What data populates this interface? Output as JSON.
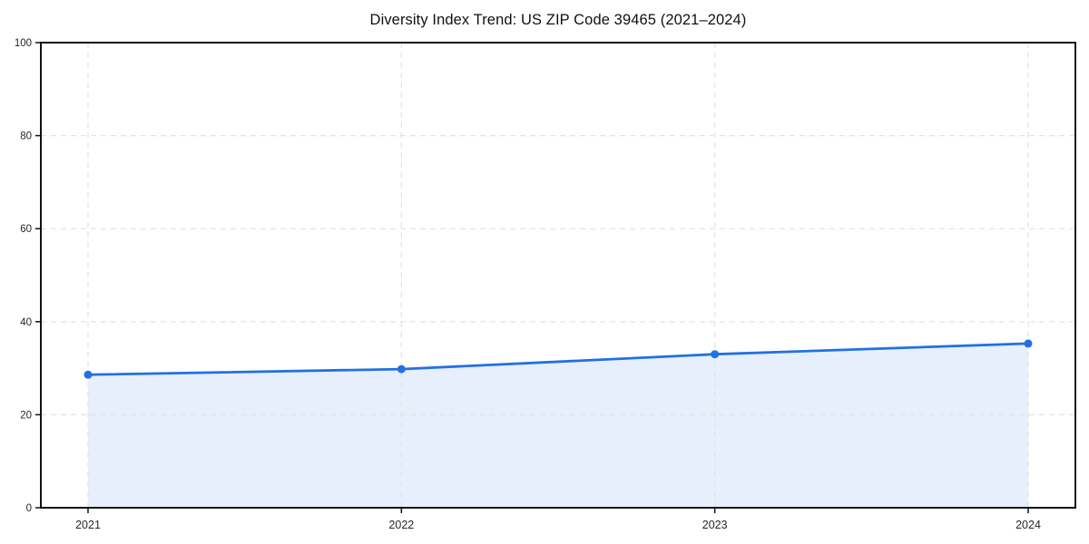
{
  "chart_data": {
    "type": "line",
    "title": "Diversity Index Trend: US ZIP Code 39465 (2021–2024)",
    "x": [
      "2021",
      "2022",
      "2023",
      "2024"
    ],
    "series": [
      {
        "name": "Diversity Index",
        "values": [
          28.6,
          29.8,
          33.0,
          35.3
        ]
      }
    ],
    "xlabel": "",
    "ylabel": "",
    "ylim": [
      0,
      100
    ],
    "yticks": [
      0,
      20,
      40,
      60,
      80,
      100
    ],
    "grid": "dashed, both horizontal and vertical at year positions",
    "legend": "none",
    "area_fill": true,
    "marker": "circle",
    "frame": "full box spines with outward tick marks",
    "colors": {
      "line": "#2270e4",
      "marker": "#2270e4",
      "area": "rgba(34,112,228,0.11)",
      "grid": "#e2e2e2",
      "spine": "#111111",
      "title_text": "#111111",
      "tick_text": "#262626",
      "background": "#ffffff"
    }
  }
}
